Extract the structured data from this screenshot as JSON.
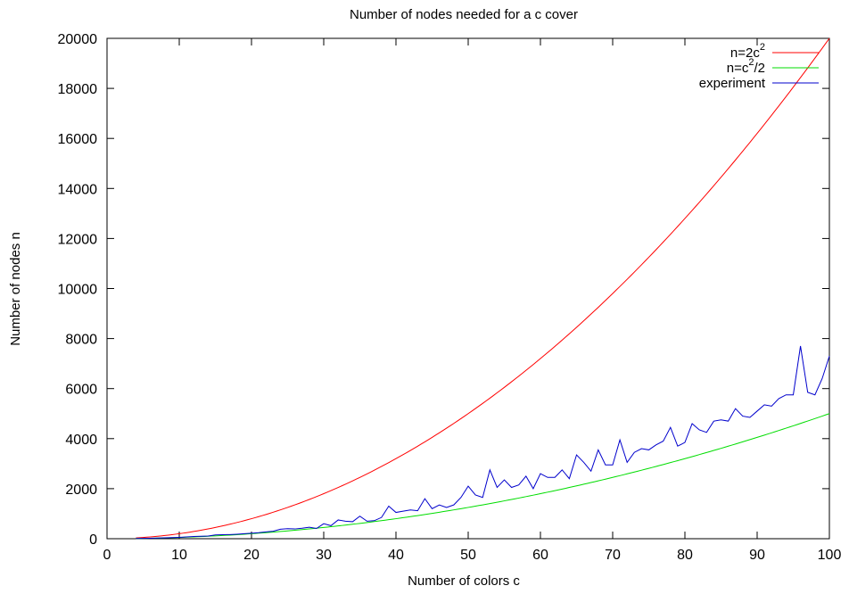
{
  "chart_data": {
    "type": "line",
    "title": "Number of nodes needed for a c cover",
    "xlabel": "Number of colors c",
    "ylabel": "Number of nodes n",
    "xlim": [
      0,
      100
    ],
    "ylim": [
      0,
      20000
    ],
    "x_ticks": [
      0,
      10,
      20,
      30,
      40,
      50,
      60,
      70,
      80,
      90,
      100
    ],
    "y_ticks": [
      0,
      2000,
      4000,
      6000,
      8000,
      10000,
      12000,
      14000,
      16000,
      18000,
      20000
    ],
    "grid": false,
    "legend_position": "top-right",
    "series": [
      {
        "name": "n=2c",
        "superscript": "2",
        "color": "#ff0000",
        "formula": "2*c^2",
        "x_range": [
          4,
          100
        ]
      },
      {
        "name": "n=c",
        "superscript": "2",
        "suffix": "/2",
        "color": "#00dd00",
        "formula": "c^2/2",
        "x_range": [
          4,
          100
        ]
      },
      {
        "name": "experiment",
        "color": "#0000cc",
        "x": [
          4,
          5,
          6,
          7,
          8,
          9,
          10,
          11,
          12,
          13,
          14,
          15,
          16,
          17,
          18,
          19,
          20,
          21,
          22,
          23,
          24,
          25,
          26,
          27,
          28,
          29,
          30,
          31,
          32,
          33,
          34,
          35,
          36,
          37,
          38,
          39,
          40,
          41,
          42,
          43,
          44,
          45,
          46,
          47,
          48,
          49,
          50,
          51,
          52,
          53,
          54,
          55,
          56,
          57,
          58,
          59,
          60,
          61,
          62,
          63,
          64,
          65,
          66,
          67,
          68,
          69,
          70,
          71,
          72,
          73,
          74,
          75,
          76,
          77,
          78,
          79,
          80,
          81,
          82,
          83,
          84,
          85,
          86,
          87,
          88,
          89,
          90,
          91,
          92,
          93,
          94,
          95,
          96,
          97,
          98,
          99,
          100
        ],
        "values": [
          10,
          15,
          20,
          25,
          35,
          45,
          55,
          70,
          90,
          100,
          105,
          150,
          160,
          165,
          180,
          200,
          220,
          240,
          270,
          300,
          380,
          400,
          390,
          420,
          460,
          410,
          600,
          520,
          750,
          700,
          680,
          900,
          700,
          720,
          850,
          1300,
          1050,
          1100,
          1150,
          1120,
          1600,
          1200,
          1350,
          1250,
          1350,
          1650,
          2100,
          1750,
          1650,
          2750,
          2050,
          2350,
          2050,
          2150,
          2500,
          2000,
          2600,
          2450,
          2450,
          2750,
          2400,
          3350,
          3050,
          2700,
          3550,
          2950,
          2950,
          3950,
          3050,
          3450,
          3600,
          3550,
          3750,
          3900,
          4450,
          3700,
          3850,
          4600,
          4350,
          4250,
          4700,
          4750,
          4700,
          5200,
          4900,
          4850,
          5100,
          5350,
          5300,
          5600,
          5750,
          5750,
          7700,
          5850,
          5750,
          6400,
          7300
        ]
      }
    ]
  }
}
